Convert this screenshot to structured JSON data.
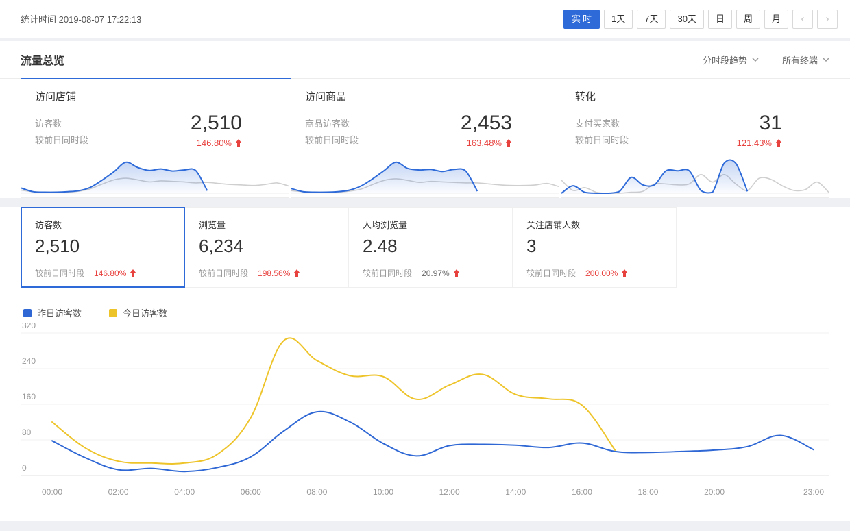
{
  "colors": {
    "accent": "#2e6bd9",
    "up_red": "#e8423f",
    "chart_blue": "#2f68d5",
    "chart_yellow": "#eec42b",
    "spark_gray": "#cfcfcf"
  },
  "header": {
    "stat_label": "统计时间",
    "stat_time": "2019-08-07 17:22:13",
    "ranges": [
      "实时",
      "1天",
      "7天",
      "30天",
      "日",
      "周",
      "月"
    ],
    "active_range": "实时",
    "prev_label": "‹",
    "next_label": "›"
  },
  "section": {
    "title": "流量总览",
    "trend_dropdown": "分时段趋势",
    "terminal_dropdown": "所有终端"
  },
  "cards": [
    {
      "title": "访问店铺",
      "metric_label": "访客数",
      "compare_label": "较前日同时段",
      "value": "2,510",
      "pct": "146.80%",
      "trend": "up",
      "spark": {
        "slots": 24,
        "max": 6.5,
        "today": [
          1.0,
          0.3,
          0.2,
          0.2,
          0.3,
          0.5,
          1.2,
          2.6,
          4.2,
          6.0,
          5.0,
          4.4,
          4.7,
          4.3,
          4.5,
          4.4,
          0.5
        ],
        "yesterday": [
          0.6,
          0.3,
          0.2,
          0.2,
          0.2,
          0.4,
          0.9,
          1.8,
          2.6,
          2.9,
          2.6,
          2.2,
          2.4,
          2.3,
          2.2,
          2.0,
          2.1,
          1.9,
          1.7,
          1.6,
          1.5,
          1.7,
          2.0,
          1.4
        ]
      }
    },
    {
      "title": "访问商品",
      "metric_label": "商品访客数",
      "compare_label": "较前日同时段",
      "value": "2,453",
      "pct": "163.48%",
      "trend": "up",
      "spark": {
        "slots": 24,
        "max": 6.5,
        "today": [
          0.9,
          0.3,
          0.2,
          0.2,
          0.3,
          0.6,
          1.4,
          2.8,
          4.4,
          6.0,
          4.8,
          4.5,
          4.6,
          4.2,
          4.6,
          4.3,
          0.4
        ],
        "yesterday": [
          0.5,
          0.3,
          0.2,
          0.2,
          0.2,
          0.4,
          0.8,
          1.7,
          2.5,
          2.8,
          2.5,
          2.1,
          2.3,
          2.2,
          2.1,
          2.0,
          2.0,
          1.8,
          1.6,
          1.5,
          1.5,
          1.6,
          1.9,
          1.3
        ]
      }
    },
    {
      "title": "转化",
      "metric_label": "支付买家数",
      "compare_label": "较前日同时段",
      "value": "31",
      "pct": "121.43%",
      "trend": "up",
      "spark": {
        "slots": 24,
        "max": 3.6,
        "today": [
          0,
          0.8,
          0.1,
          0,
          0,
          0.2,
          1.7,
          0.9,
          0.9,
          2.4,
          2.4,
          2.4,
          0.3,
          0.1,
          3.2,
          3.2,
          0.2
        ],
        "yesterday": [
          1.4,
          0.3,
          0.6,
          0.1,
          0,
          0,
          0.1,
          0.2,
          1.0,
          1.0,
          0.9,
          1.0,
          2.0,
          1.2,
          2.0,
          1.0,
          0.3,
          1.6,
          1.5,
          0.8,
          0.3,
          0.4,
          1.2,
          0.1
        ]
      }
    }
  ],
  "tiles": [
    {
      "label": "访客数",
      "value": "2,510",
      "compare_label": "较前日同时段",
      "pct": "146.80%",
      "pct_color": "#e8423f",
      "trend": "up",
      "selected": true
    },
    {
      "label": "浏览量",
      "value": "6,234",
      "compare_label": "较前日同时段",
      "pct": "198.56%",
      "pct_color": "#e8423f",
      "trend": "up",
      "selected": false
    },
    {
      "label": "人均浏览量",
      "value": "2.48",
      "compare_label": "较前日同时段",
      "pct": "20.97%",
      "pct_color": "#666666",
      "trend": "up",
      "selected": false
    },
    {
      "label": "关注店铺人数",
      "value": "3",
      "compare_label": "较前日同时段",
      "pct": "200.00%",
      "pct_color": "#e8423f",
      "trend": "up",
      "selected": false
    }
  ],
  "chart_data": {
    "type": "line",
    "x_unit": "hour",
    "x_ticks": [
      0,
      2,
      4,
      6,
      8,
      10,
      12,
      14,
      16,
      18,
      20,
      23
    ],
    "x_tick_labels": [
      "00:00",
      "02:00",
      "04:00",
      "06:00",
      "08:00",
      "10:00",
      "12:00",
      "14:00",
      "16:00",
      "18:00",
      "20:00",
      "23:00"
    ],
    "y_ticks": [
      0,
      80,
      160,
      240,
      320
    ],
    "ylim": [
      0,
      320
    ],
    "grid": true,
    "legend_position": "top-left",
    "series": [
      {
        "name": "昨日访客数",
        "color": "#2f68d5",
        "values": [
          78,
          40,
          13,
          16,
          9,
          18,
          42,
          100,
          143,
          120,
          72,
          44,
          67,
          70,
          68,
          63,
          73,
          54,
          52,
          54,
          57,
          65,
          90,
          58
        ]
      },
      {
        "name": "今日访客数",
        "color": "#eec42b",
        "values": [
          120,
          62,
          32,
          28,
          28,
          48,
          130,
          303,
          258,
          224,
          222,
          171,
          203,
          227,
          182,
          172,
          158,
          57
        ]
      }
    ]
  }
}
